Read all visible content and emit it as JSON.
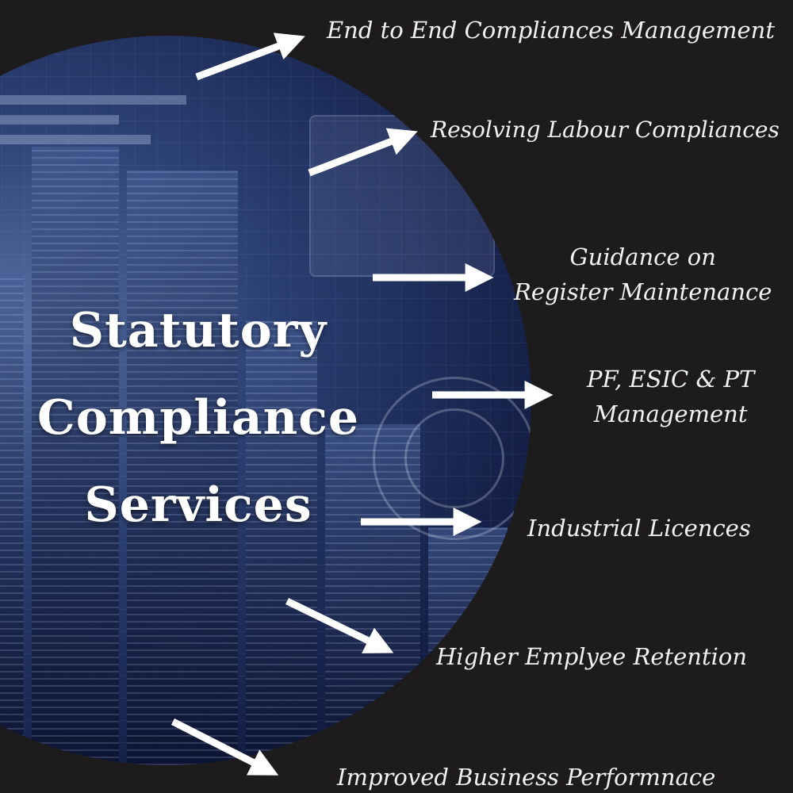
{
  "title": {
    "line1": "Statutory",
    "line2": "Compliance",
    "line3": "Services"
  },
  "services": {
    "item1": "End to End  Compliances Management",
    "item2": "Resolving Labour Compliances",
    "item3a": "Guidance on",
    "item3b": "Register Maintenance",
    "item4a": "PF, ESIC & PT",
    "item4b": "Management",
    "item5": "Industrial Licences",
    "item6": "Higher Emplyee Retention",
    "item7": "Improved Business Performnace"
  },
  "colors": {
    "background": "#1d1b1c",
    "text": "#ffffff",
    "circle_blue": "#2d4682"
  }
}
